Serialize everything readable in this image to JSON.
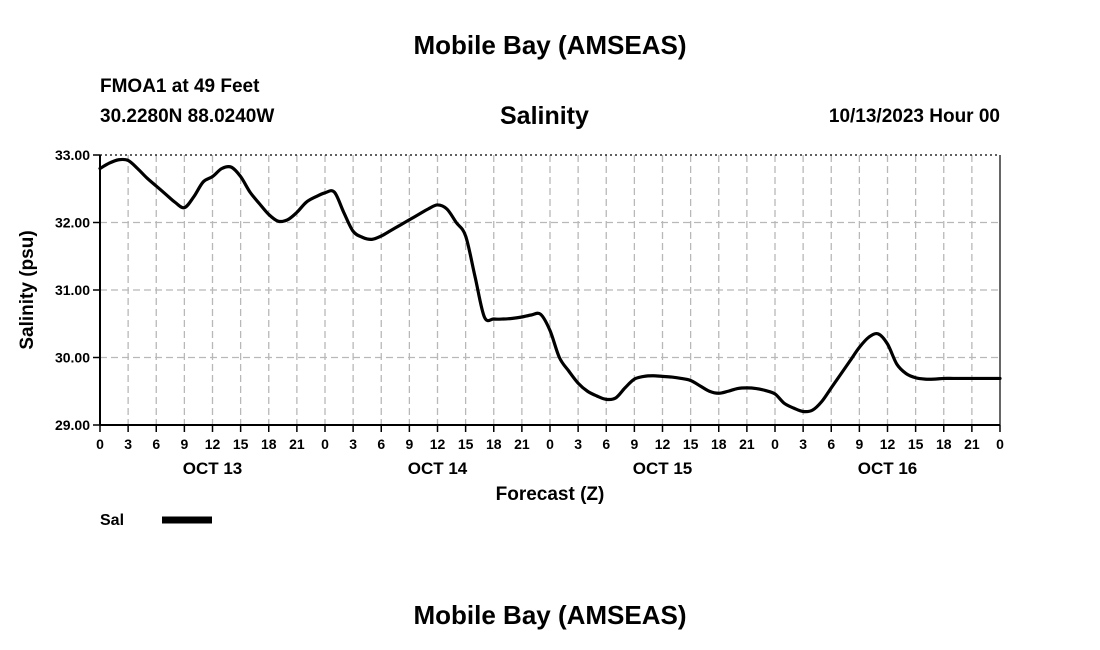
{
  "page": {
    "title_top": "Mobile Bay (AMSEAS)",
    "station": "FMOA1 at 49 Feet",
    "coords": "30.2280N  88.0240W",
    "chart_title": "Salinity",
    "run_time": "10/13/2023 Hour 00",
    "title_bottom": "Mobile Bay (AMSEAS)"
  },
  "chart_data": {
    "type": "line",
    "title": "Salinity",
    "xlabel": "Forecast (Z)",
    "ylabel": "Salinity (psu)",
    "ylim": [
      29.0,
      33.0
    ],
    "xlim": [
      0,
      96
    ],
    "y_ticks": [
      29.0,
      30.0,
      31.0,
      32.0,
      33.0
    ],
    "y_tick_labels": [
      "29.00",
      "30.00",
      "31.00",
      "32.00",
      "33.00"
    ],
    "x_tick_hours": [
      0,
      3,
      6,
      9,
      12,
      15,
      18,
      21,
      24,
      27,
      30,
      33,
      36,
      39,
      42,
      45,
      48,
      51,
      54,
      57,
      60,
      63,
      66,
      69,
      72,
      75,
      78,
      81,
      84,
      87,
      90,
      93,
      96
    ],
    "x_tick_labels": [
      "0",
      "3",
      "6",
      "9",
      "12",
      "15",
      "18",
      "21",
      "0",
      "3",
      "6",
      "9",
      "12",
      "15",
      "18",
      "21",
      "0",
      "3",
      "6",
      "9",
      "12",
      "15",
      "18",
      "21",
      "0",
      "3",
      "6",
      "9",
      "12",
      "15",
      "18",
      "21",
      "0"
    ],
    "date_labels": [
      {
        "hour": 12,
        "label": "OCT 13"
      },
      {
        "hour": 36,
        "label": "OCT 14"
      },
      {
        "hour": 60,
        "label": "OCT 15"
      },
      {
        "hour": 84,
        "label": "OCT 16"
      }
    ],
    "grid": true,
    "legend": {
      "placement": "bottom-left"
    },
    "series": [
      {
        "name": "Sal",
        "color": "#000000",
        "x": [
          0,
          1,
          2,
          3,
          4,
          5,
          6,
          7,
          8,
          9,
          10,
          11,
          12,
          13,
          14,
          15,
          16,
          17,
          18,
          19,
          20,
          21,
          22,
          23,
          24,
          25,
          26,
          27,
          28,
          29,
          30,
          31,
          32,
          33,
          34,
          35,
          36,
          37,
          38,
          39,
          40,
          41,
          42,
          43,
          44,
          45,
          46,
          47,
          48,
          49,
          50,
          51,
          52,
          53,
          54,
          55,
          56,
          57,
          58,
          59,
          60,
          61,
          62,
          63,
          64,
          65,
          66,
          67,
          68,
          69,
          70,
          71,
          72,
          73,
          74,
          75,
          76,
          77,
          78,
          79,
          80,
          81,
          82,
          83,
          84,
          85,
          86,
          87,
          88,
          89,
          90,
          91,
          92,
          93,
          94,
          95,
          96
        ],
        "values": [
          32.8,
          32.88,
          32.93,
          32.92,
          32.8,
          32.66,
          32.54,
          32.42,
          32.3,
          32.22,
          32.38,
          32.6,
          32.68,
          32.8,
          32.82,
          32.68,
          32.45,
          32.28,
          32.12,
          32.02,
          32.04,
          32.15,
          32.3,
          32.38,
          32.44,
          32.45,
          32.15,
          31.87,
          31.78,
          31.75,
          31.8,
          31.88,
          31.96,
          32.04,
          32.12,
          32.2,
          32.26,
          32.2,
          32.0,
          31.8,
          31.2,
          30.6,
          30.57,
          30.57,
          30.58,
          30.6,
          30.63,
          30.64,
          30.4,
          30.0,
          29.8,
          29.62,
          29.5,
          29.43,
          29.38,
          29.4,
          29.55,
          29.68,
          29.72,
          29.73,
          29.72,
          29.71,
          29.69,
          29.66,
          29.58,
          29.5,
          29.47,
          29.5,
          29.54,
          29.55,
          29.54,
          29.51,
          29.46,
          29.32,
          29.25,
          29.2,
          29.22,
          29.35,
          29.55,
          29.75,
          29.95,
          30.15,
          30.3,
          30.35,
          30.2,
          29.9,
          29.76,
          29.7,
          29.68,
          29.68,
          29.69,
          29.69,
          29.69,
          29.69,
          29.69,
          29.69,
          29.69
        ]
      }
    ]
  }
}
